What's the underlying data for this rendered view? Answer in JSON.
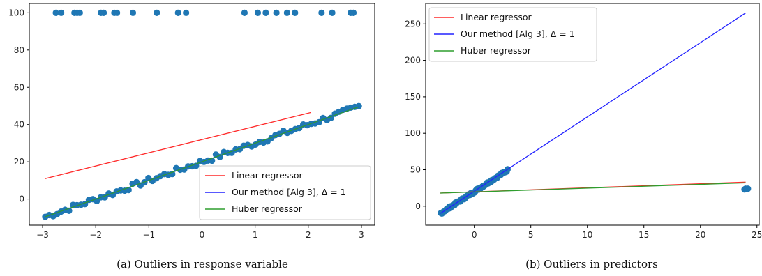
{
  "colors": {
    "linear": "#ff2a2a",
    "ours": "#2222ff",
    "huber": "#2e9e2e",
    "points": "#1f77b4"
  },
  "chart_data": [
    {
      "type": "scatter",
      "caption": "(a) Outliers in response variable",
      "xlim": [
        -3.25,
        3.25
      ],
      "ylim": [
        -14,
        105
      ],
      "xticks": [
        -3,
        -2,
        -1,
        0,
        1,
        2,
        3
      ],
      "yticks": [
        0,
        20,
        40,
        60,
        80,
        100
      ],
      "xtick_labels": [
        "−3",
        "−2",
        "−1",
        "0",
        "1",
        "2",
        "3"
      ],
      "ytick_labels": [
        "0",
        "20",
        "40",
        "60",
        "80",
        "100"
      ],
      "grid": false,
      "legend_position": "lower-right",
      "series": [
        {
          "name": "",
          "kind": "points",
          "color": "#1f77b4",
          "inliers": {
            "x_range": [
              -2.95,
              2.95
            ],
            "slope": 10,
            "intercept": 20,
            "count": 80
          },
          "outliers": {
            "x": [
              -2.75,
              -2.65,
              -2.4,
              -2.35,
              -2.3,
              -1.9,
              -1.85,
              -1.65,
              -1.6,
              -1.3,
              -0.85,
              -0.45,
              -0.3,
              0.8,
              1.05,
              1.2,
              1.4,
              1.6,
              1.75,
              2.25,
              2.45,
              2.8,
              2.85
            ],
            "y": [
              100,
              100,
              100,
              100,
              100,
              100,
              100,
              100,
              100,
              100,
              100,
              100,
              100,
              100,
              100,
              100,
              100,
              100,
              100,
              100,
              100,
              100,
              100
            ]
          }
        },
        {
          "name": "Linear regressor",
          "kind": "line",
          "color": "#ff2a2a",
          "x": [
            -2.95,
            2.05
          ],
          "y": [
            11,
            46.5
          ]
        },
        {
          "name": "Our method [Alg 3], Δ = 1",
          "kind": "line",
          "color": "#2222ff",
          "x": [
            -2.95,
            2.95
          ],
          "y": [
            -9.5,
            49.5
          ]
        },
        {
          "name": "Huber regressor",
          "kind": "line",
          "color": "#2e9e2e",
          "x": [
            -2.95,
            2.95
          ],
          "y": [
            -9.5,
            49.5
          ]
        }
      ],
      "legend": [
        "Linear regressor",
        "Our method [Alg 3], Δ = 1",
        "Huber regressor"
      ]
    },
    {
      "type": "scatter",
      "caption": "(b) Outliers in predictors",
      "xlim": [
        -4.3,
        25.2
      ],
      "ylim": [
        -26,
        278
      ],
      "xticks": [
        0,
        5,
        10,
        15,
        20,
        25
      ],
      "yticks": [
        0,
        50,
        100,
        150,
        200,
        250
      ],
      "xtick_labels": [
        "0",
        "5",
        "10",
        "15",
        "20",
        "25"
      ],
      "ytick_labels": [
        "0",
        "50",
        "100",
        "150",
        "200",
        "250"
      ],
      "grid": false,
      "legend_position": "top-left",
      "series": [
        {
          "name": "",
          "kind": "points",
          "color": "#1f77b4",
          "inliers": {
            "x_range": [
              -2.95,
              2.95
            ],
            "slope": 10,
            "intercept": 20,
            "count": 70
          },
          "outliers": {
            "x": [
              23.9,
              24.0,
              24.1,
              24.2
            ],
            "y": [
              23,
              24,
              23.5,
              24
            ]
          }
        },
        {
          "name": "Linear regressor",
          "kind": "line",
          "color": "#ff2a2a",
          "x": [
            -3,
            24
          ],
          "y": [
            18,
            33
          ]
        },
        {
          "name": "Our method [Alg 3], Δ = 1",
          "kind": "line",
          "color": "#2222ff",
          "x": [
            -3,
            24
          ],
          "y": [
            -10,
            265
          ]
        },
        {
          "name": "Huber regressor",
          "kind": "line",
          "color": "#2e9e2e",
          "x": [
            -3,
            24
          ],
          "y": [
            18,
            32
          ]
        }
      ],
      "legend": [
        "Linear regressor",
        "Our method [Alg 3], Δ = 1",
        "Huber regressor"
      ]
    }
  ]
}
